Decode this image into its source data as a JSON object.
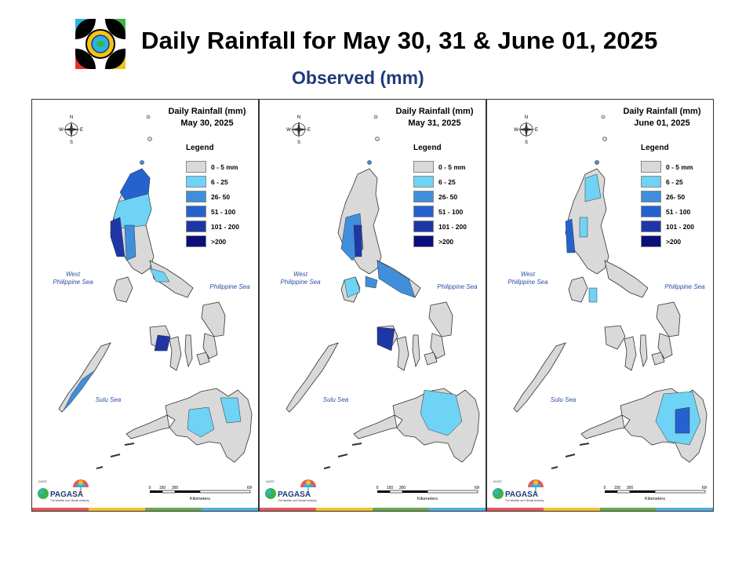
{
  "title": "Daily Rainfall for May 30, 31 & June 01, 2025",
  "subtitle": "Observed (mm)",
  "legend": {
    "title": "Legend",
    "items": [
      {
        "label": "0 - 5 mm",
        "color": "#d9d9d9"
      },
      {
        "label": "6 - 25",
        "color": "#6fd3f5"
      },
      {
        "label": "26- 50",
        "color": "#3f8fdc"
      },
      {
        "label": "51 - 100",
        "color": "#2463cf"
      },
      {
        "label": "101 - 200",
        "color": "#1f37a6"
      },
      {
        "label": ">200",
        "color": "#0b0f7a"
      }
    ]
  },
  "panels": [
    {
      "heading": "Daily Rainfall (mm)",
      "date": "May 30, 2025"
    },
    {
      "heading": "Daily Rainfall (mm)",
      "date": "May 31, 2025"
    },
    {
      "heading": "Daily Rainfall (mm)",
      "date": "June 01, 2025"
    }
  ],
  "seas": {
    "west": "West\nPhilippine Sea",
    "east": "Philippine Sea",
    "sulu": "Sulu Sea"
  },
  "compass": {
    "n": "N",
    "s": "S",
    "e": "E",
    "w": "W"
  },
  "scale": {
    "ticks": [
      "0",
      "150",
      "300",
      "600"
    ],
    "unit": "Kilometers"
  },
  "brand": {
    "agency": "PAGASA",
    "dost": "DOST",
    "tagline": "The Weather and Climate Authority"
  }
}
